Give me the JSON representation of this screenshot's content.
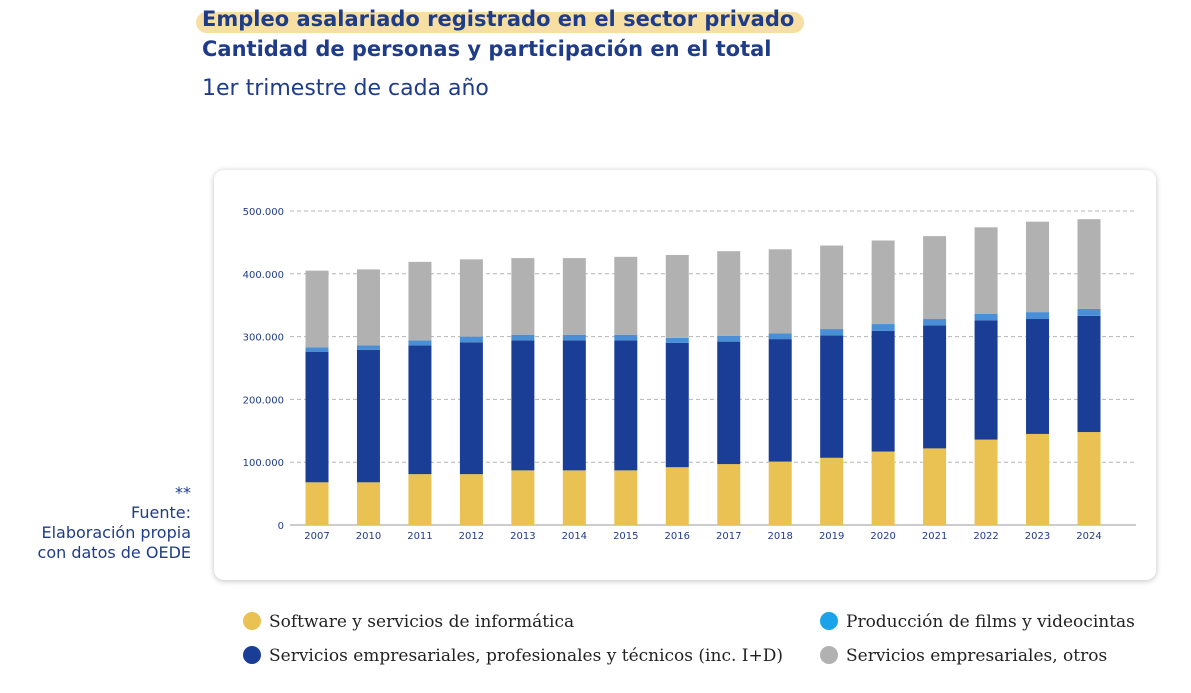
{
  "title": {
    "line1": "Empleo asalariado registrado en el sector privado",
    "line2": "Cantidad de personas y participación en el total",
    "period": "1er trimestre de cada año"
  },
  "source": {
    "marker": "**",
    "label": "Fuente:",
    "line1": "Elaboración propia",
    "line2": "con datos de OEDE"
  },
  "colors": {
    "software": "#e9c253",
    "profesionales": "#1a3d96",
    "films": "#4a8fd6",
    "otros": "#b1b1b1",
    "text": "#1f3c88"
  },
  "chart_data": {
    "type": "bar",
    "stacked": true,
    "categories": [
      "2007",
      "2010",
      "2011",
      "2012",
      "2013",
      "2014",
      "2015",
      "2016",
      "2017",
      "2018",
      "2019",
      "2020",
      "2021",
      "2022",
      "2023",
      "2024"
    ],
    "ylim": [
      0,
      500000
    ],
    "yticks": [
      0,
      100000,
      200000,
      300000,
      400000,
      500000
    ],
    "ytick_labels": [
      "0",
      "100.000",
      "200.000",
      "300.000",
      "400.000",
      "500.000"
    ],
    "grid": true,
    "legend_position": "bottom",
    "series": [
      {
        "name": "Software y servicios de informática",
        "color_key": "software",
        "values": [
          68000,
          68000,
          81000,
          81000,
          87000,
          87000,
          87000,
          92000,
          97000,
          101000,
          107000,
          117000,
          122000,
          136000,
          145000,
          148000
        ]
      },
      {
        "name": "Servicios empresariales, profesionales y técnicos (inc. I+D)",
        "color_key": "profesionales",
        "values": [
          208000,
          211000,
          205000,
          210000,
          207000,
          207000,
          207000,
          198000,
          195000,
          195000,
          195000,
          192000,
          196000,
          190000,
          183000,
          185000
        ]
      },
      {
        "name": "Producción de films y videocintas",
        "color_key": "films",
        "values": [
          7000,
          7000,
          8000,
          9000,
          9000,
          9000,
          9000,
          8000,
          9000,
          9000,
          10000,
          11000,
          10000,
          10000,
          11000,
          11000
        ]
      },
      {
        "name": "Servicios empresariales, otros",
        "color_key": "otros",
        "values": [
          122000,
          121000,
          125000,
          123000,
          122000,
          122000,
          124000,
          132000,
          135000,
          134000,
          133000,
          133000,
          132000,
          138000,
          144000,
          143000
        ]
      }
    ]
  }
}
